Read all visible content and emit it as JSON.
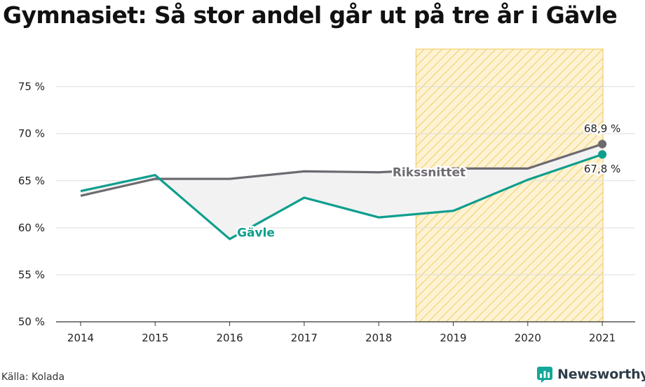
{
  "title": "Gymnasiet: Så stor andel går ut på tre år i Gävle",
  "source": "Källa: Kolada",
  "brand": {
    "name": "Newsworthy",
    "icon": "newsworthy-logo-icon"
  },
  "colors": {
    "gavle": "#0f9e8e",
    "riket": "#6d6a70",
    "highlight_fill": "#fdf3d4",
    "highlight_stripe": "#f2cf6c",
    "grid": "#dddddd"
  },
  "chart_data": {
    "type": "line",
    "categories": [
      "2014",
      "2015",
      "2016",
      "2017",
      "2018",
      "2019",
      "2020",
      "2021"
    ],
    "ylim": [
      50,
      79
    ],
    "yticks": [
      50,
      55,
      60,
      65,
      70,
      75
    ],
    "ytick_labels": [
      "50 %",
      "55 %",
      "60 %",
      "65 %",
      "70 %",
      "75 %"
    ],
    "highlight_range": [
      "2019",
      "2021"
    ],
    "series": [
      {
        "name": "Rikssnittet",
        "key": "riket",
        "values": [
          63.4,
          65.2,
          65.2,
          66.0,
          65.9,
          66.3,
          66.3,
          68.9
        ],
        "end_label": "68,9 %"
      },
      {
        "name": "Gävle",
        "key": "gavle",
        "values": [
          63.9,
          65.6,
          58.8,
          63.2,
          61.1,
          61.8,
          65.1,
          67.8
        ],
        "end_label": "67,8 %"
      }
    ]
  }
}
